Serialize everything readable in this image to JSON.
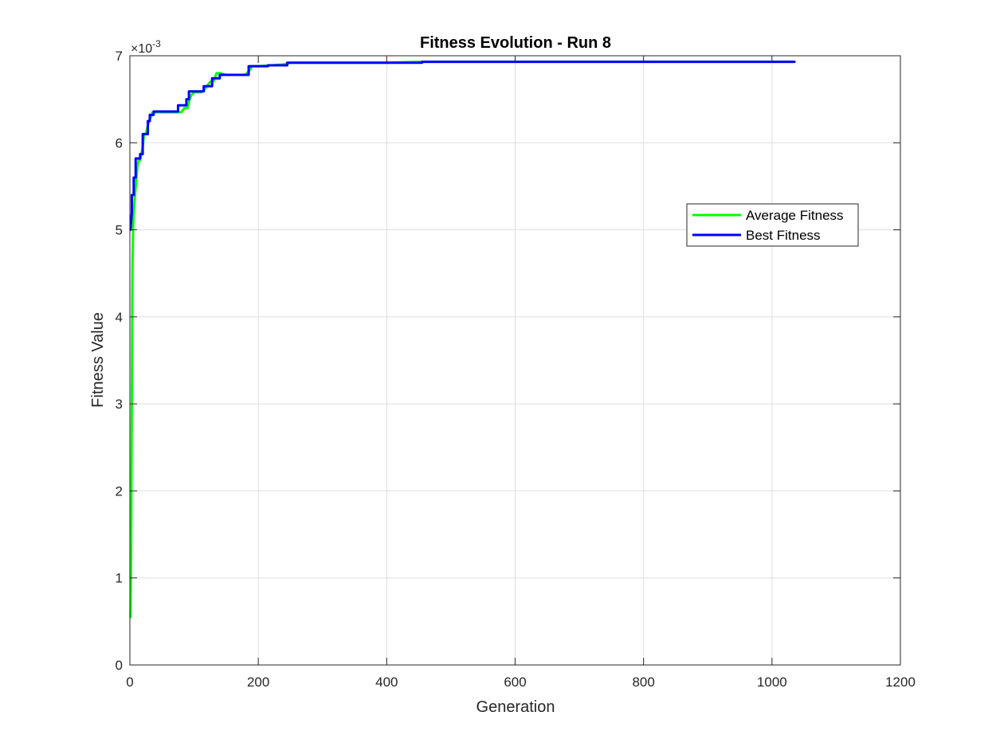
{
  "chart_data": {
    "type": "line",
    "title": "Fitness Evolution - Run 8",
    "xlabel": "Generation",
    "ylabel": "Fitness Value",
    "y_exponent": {
      "base": "×10",
      "power": "-3"
    },
    "xlim": [
      0,
      1200
    ],
    "ylim": [
      0,
      0.007
    ],
    "xticks": [
      0,
      200,
      400,
      600,
      800,
      1000,
      1200
    ],
    "yticks": [
      0,
      0.001,
      0.002,
      0.003,
      0.004,
      0.005,
      0.006,
      0.007
    ],
    "xtick_labels": [
      "0",
      "200",
      "400",
      "600",
      "800",
      "1000",
      "1200"
    ],
    "ytick_labels": [
      "0",
      "1",
      "2",
      "3",
      "4",
      "5",
      "6",
      "7"
    ],
    "grid": true,
    "legend_position": "right",
    "series": [
      {
        "name": "Average Fitness",
        "color": "#00ff00",
        "x": [
          1,
          2,
          3,
          4,
          5,
          6,
          8,
          12,
          14,
          16,
          20,
          22,
          25,
          28,
          30,
          33,
          35,
          38,
          40,
          60,
          80,
          85,
          90,
          93,
          96,
          100,
          110,
          115,
          125,
          130,
          135,
          140,
          150,
          180,
          188,
          190,
          200,
          240,
          250,
          300,
          400,
          455,
          600,
          800,
          1000,
          1035
        ],
        "y": [
          0.00055,
          0.0014,
          0.003,
          0.0045,
          0.005,
          0.0052,
          0.0054,
          0.00575,
          0.0058,
          0.0058,
          0.00595,
          0.0061,
          0.0061,
          0.0062,
          0.00625,
          0.0063,
          0.00635,
          0.00635,
          0.00635,
          0.00635,
          0.00635,
          0.0064,
          0.0064,
          0.0065,
          0.00655,
          0.00658,
          0.00658,
          0.0066,
          0.0067,
          0.0067,
          0.0068,
          0.0068,
          0.00678,
          0.00678,
          0.00685,
          0.00688,
          0.00688,
          0.0069,
          0.00692,
          0.00692,
          0.00692,
          0.00693,
          0.00693,
          0.00693,
          0.00693,
          0.00693
        ]
      },
      {
        "name": "Best Fitness",
        "color": "#0000ff",
        "x": [
          1,
          3,
          3,
          6,
          6,
          9,
          9,
          16,
          16,
          20,
          20,
          28,
          28,
          31,
          31,
          37,
          37,
          75,
          75,
          88,
          88,
          92,
          92,
          96,
          96,
          115,
          115,
          128,
          128,
          133,
          133,
          140,
          140,
          150,
          150,
          185,
          185,
          215,
          215,
          245,
          245,
          455,
          455,
          1035
        ],
        "y": [
          0.005,
          0.0052,
          0.0054,
          0.0054,
          0.0056,
          0.0056,
          0.00582,
          0.00582,
          0.00587,
          0.00587,
          0.0061,
          0.0061,
          0.00625,
          0.00625,
          0.00632,
          0.00632,
          0.00636,
          0.00636,
          0.00643,
          0.00643,
          0.0065,
          0.0065,
          0.00659,
          0.00659,
          0.00659,
          0.00659,
          0.00665,
          0.00665,
          0.00674,
          0.00674,
          0.00674,
          0.00674,
          0.00678,
          0.00678,
          0.00678,
          0.00678,
          0.00688,
          0.00688,
          0.00689,
          0.00689,
          0.00692,
          0.00692,
          0.00693,
          0.00693
        ]
      }
    ]
  }
}
